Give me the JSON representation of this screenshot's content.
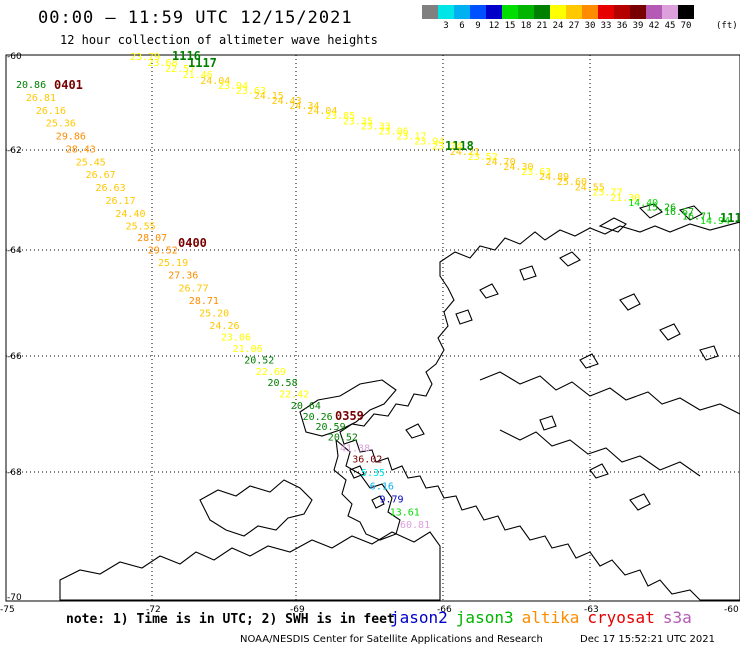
{
  "header": {
    "title": "00:00 – 11:59 UTC 12/15/2021",
    "subtitle": "12 hour collection of altimeter wave heights"
  },
  "legend": {
    "unit": "(ft)",
    "scale": [
      {
        "value": "",
        "color": "#808080"
      },
      {
        "value": "3",
        "color": "#00e5e5"
      },
      {
        "value": "6",
        "color": "#00b0f0"
      },
      {
        "value": "9",
        "color": "#0050ff"
      },
      {
        "value": "12",
        "color": "#0000c8"
      },
      {
        "value": "15",
        "color": "#00dd00"
      },
      {
        "value": "18",
        "color": "#00b400"
      },
      {
        "value": "21",
        "color": "#008000"
      },
      {
        "value": "24",
        "color": "#ffff00"
      },
      {
        "value": "27",
        "color": "#ffc800"
      },
      {
        "value": "30",
        "color": "#ff8c00"
      },
      {
        "value": "33",
        "color": "#e60000"
      },
      {
        "value": "36",
        "color": "#b40000"
      },
      {
        "value": "39",
        "color": "#780000"
      },
      {
        "value": "42",
        "color": "#b45ab4"
      },
      {
        "value": "45",
        "color": "#dca0dc"
      },
      {
        "value": "70",
        "color": "#000000"
      }
    ]
  },
  "map": {
    "lat_labels": [
      "-60",
      "-62",
      "-64",
      "-66",
      "-68",
      "-70"
    ],
    "lon_labels": [
      "-75",
      "-72",
      "-69",
      "-66",
      "-63",
      "-60"
    ],
    "time_labels": [
      {
        "text": "0401",
        "color": "#780000"
      },
      {
        "text": "0400",
        "color": "#780000"
      },
      {
        "text": "0359",
        "color": "#780000"
      },
      {
        "text": "1116",
        "color": "#008000"
      },
      {
        "text": "1117",
        "color": "#008000"
      },
      {
        "text": "1118",
        "color": "#008000"
      },
      {
        "text": "111",
        "color": "#008000"
      }
    ],
    "track_a": [
      {
        "v": "20.86",
        "c": "#008000"
      },
      {
        "v": "26.81",
        "c": "#ffc800"
      },
      {
        "v": "26.16",
        "c": "#ffc800"
      },
      {
        "v": "25.36",
        "c": "#ffc800"
      },
      {
        "v": "29.86",
        "c": "#ff8c00"
      },
      {
        "v": "28.43",
        "c": "#ff8c00"
      },
      {
        "v": "25.45",
        "c": "#ffc800"
      },
      {
        "v": "26.67",
        "c": "#ffc800"
      },
      {
        "v": "26.63",
        "c": "#ffc800"
      },
      {
        "v": "26.17",
        "c": "#ffc800"
      },
      {
        "v": "24.40",
        "c": "#ffc800"
      },
      {
        "v": "25.55",
        "c": "#ffc800"
      },
      {
        "v": "28.07",
        "c": "#ff8c00"
      },
      {
        "v": "29.52",
        "c": "#ff8c00"
      },
      {
        "v": "25.19",
        "c": "#ffc800"
      },
      {
        "v": "27.36",
        "c": "#ff8c00"
      },
      {
        "v": "26.77",
        "c": "#ffc800"
      },
      {
        "v": "28.71",
        "c": "#ff8c00"
      },
      {
        "v": "25.20",
        "c": "#ffc800"
      },
      {
        "v": "24.26",
        "c": "#ffc800"
      },
      {
        "v": "23.06",
        "c": "#ffff00"
      },
      {
        "v": "21.06",
        "c": "#ffff00"
      },
      {
        "v": "20.52",
        "c": "#008000"
      },
      {
        "v": "22.69",
        "c": "#ffff00"
      },
      {
        "v": "20.58",
        "c": "#008000"
      },
      {
        "v": "22.42",
        "c": "#ffff00"
      },
      {
        "v": "20.64",
        "c": "#008000"
      },
      {
        "v": "20.26",
        "c": "#008000"
      },
      {
        "v": "20.59",
        "c": "#008000"
      },
      {
        "v": "20.52",
        "c": "#008000"
      },
      {
        "v": "41.38",
        "c": "#dca0dc"
      },
      {
        "v": "36.02",
        "c": "#780000"
      },
      {
        "v": "5.35",
        "c": "#00e5e5"
      },
      {
        "v": "6.16",
        "c": "#00b0f0"
      },
      {
        "v": "9.79",
        "c": "#0000c8"
      },
      {
        "v": "13.61",
        "c": "#00dd00"
      },
      {
        "v": "60.81",
        "c": "#dca0dc"
      }
    ],
    "track_b": [
      {
        "v": "23.79",
        "c": "#ffff00"
      },
      {
        "v": "23.68",
        "c": "#ffff00"
      },
      {
        "v": "22.57",
        "c": "#ffff00"
      },
      {
        "v": "21.46",
        "c": "#ffff00"
      },
      {
        "v": "24.04",
        "c": "#ffc800"
      },
      {
        "v": "23.94",
        "c": "#ffff00"
      },
      {
        "v": "23.63",
        "c": "#ffff00"
      },
      {
        "v": "24.15",
        "c": "#ffc800"
      },
      {
        "v": "24.43",
        "c": "#ffc800"
      },
      {
        "v": "24.34",
        "c": "#ffc800"
      },
      {
        "v": "24.04",
        "c": "#ffc800"
      },
      {
        "v": "23.85",
        "c": "#ffff00"
      },
      {
        "v": "23.35",
        "c": "#ffff00"
      },
      {
        "v": "23.33",
        "c": "#ffff00"
      },
      {
        "v": "23.06",
        "c": "#ffff00"
      },
      {
        "v": "23.17",
        "c": "#ffff00"
      },
      {
        "v": "23.94",
        "c": "#ffff00"
      },
      {
        "v": "23.74",
        "c": "#ffff00"
      },
      {
        "v": "24.21",
        "c": "#ffc800"
      },
      {
        "v": "23.52",
        "c": "#ffff00"
      },
      {
        "v": "24.70",
        "c": "#ffc800"
      },
      {
        "v": "24.30",
        "c": "#ffc800"
      },
      {
        "v": "23.63",
        "c": "#ffff00"
      },
      {
        "v": "24.89",
        "c": "#ffc800"
      },
      {
        "v": "25.60",
        "c": "#ffc800"
      },
      {
        "v": "24.55",
        "c": "#ffc800"
      },
      {
        "v": "23.77",
        "c": "#ffff00"
      },
      {
        "v": "21.30",
        "c": "#ffff00"
      },
      {
        "v": "14.40",
        "c": "#00dd00"
      },
      {
        "v": "15.26",
        "c": "#00b400"
      },
      {
        "v": "16.67",
        "c": "#00b400"
      },
      {
        "v": "16.71",
        "c": "#00b400"
      },
      {
        "v": "14.94",
        "c": "#00dd00"
      }
    ]
  },
  "footer": {
    "note": "note: 1) Time is in UTC; 2) SWH is in feet",
    "satellites": [
      {
        "name": "jason2",
        "color": "#0000c8"
      },
      {
        "name": "jason3",
        "color": "#00b400"
      },
      {
        "name": "altika",
        "color": "#ff8c00"
      },
      {
        "name": "cryosat",
        "color": "#e60000"
      },
      {
        "name": "s3a",
        "color": "#b45ab4"
      }
    ],
    "credit": "NOAA/NESDIS Center for Satellite Applications and Research",
    "timestamp": "Dec 17 15:52:21 UTC 2021"
  }
}
